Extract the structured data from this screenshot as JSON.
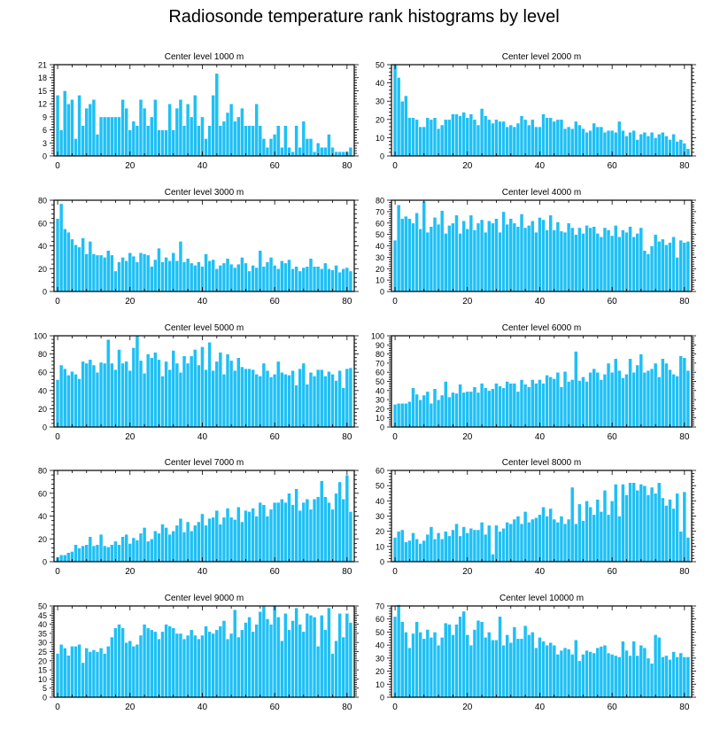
{
  "figure_title": "Radiosonde temperature rank histograms by level",
  "colors": {
    "bar": "#1EC0F5",
    "bar_edge": "#ffffff",
    "axis": "#000000"
  },
  "chart_data": [
    {
      "type": "bar",
      "title": "Center level 1000 m",
      "xlim": [
        -1,
        82
      ],
      "ylim": [
        0,
        21
      ],
      "xticks": [
        0,
        20,
        40,
        60,
        80
      ],
      "yticks": [
        0,
        3,
        6,
        9,
        12,
        15,
        18,
        21
      ],
      "values": [
        14,
        6,
        15,
        12,
        13,
        4,
        14,
        7,
        11,
        12,
        13,
        5,
        9,
        9,
        9,
        9,
        9,
        9,
        13,
        11,
        6,
        8,
        7,
        13,
        11,
        7,
        9,
        13,
        6,
        6,
        6,
        12,
        6,
        11,
        13,
        7,
        12,
        9,
        14,
        7,
        9,
        4,
        7,
        14,
        19,
        7,
        8,
        10,
        12,
        8,
        9,
        11,
        7,
        7,
        7,
        12,
        7,
        4,
        2,
        4,
        5,
        7,
        2,
        7,
        2,
        1,
        7,
        2,
        8,
        4,
        4,
        1,
        3,
        2,
        2,
        5,
        2,
        1,
        1,
        1,
        1,
        2
      ]
    },
    {
      "type": "bar",
      "title": "Center level 2000 m",
      "xlim": [
        -1,
        82
      ],
      "ylim": [
        0,
        50
      ],
      "xticks": [
        0,
        20,
        40,
        60,
        80
      ],
      "yticks": [
        0,
        10,
        20,
        30,
        40,
        50
      ],
      "values": [
        50,
        43,
        30,
        33,
        21,
        21,
        20,
        16,
        16,
        21,
        20,
        21,
        15,
        17,
        20,
        20,
        23,
        23,
        22,
        24,
        21,
        23,
        20,
        17,
        26,
        22,
        20,
        18,
        20,
        19,
        19,
        16,
        17,
        16,
        18,
        22,
        20,
        17,
        20,
        16,
        16,
        23,
        21,
        21,
        19,
        20,
        20,
        15,
        16,
        15,
        19,
        17,
        15,
        13,
        14,
        18,
        16,
        16,
        13,
        14,
        14,
        13,
        19,
        14,
        11,
        13,
        14,
        9,
        12,
        13,
        11,
        13,
        10,
        12,
        13,
        11,
        9,
        12,
        8,
        9,
        7,
        4
      ]
    },
    {
      "type": "bar",
      "title": "Center level 3000 m",
      "xlim": [
        -1,
        82
      ],
      "ylim": [
        0,
        80
      ],
      "xticks": [
        0,
        20,
        40,
        60,
        80
      ],
      "yticks": [
        0,
        20,
        40,
        60,
        80
      ],
      "values": [
        64,
        77,
        55,
        52,
        46,
        41,
        39,
        47,
        33,
        44,
        33,
        32,
        32,
        30,
        36,
        32,
        18,
        26,
        30,
        27,
        34,
        31,
        26,
        34,
        33,
        32,
        22,
        28,
        38,
        26,
        30,
        27,
        34,
        27,
        44,
        26,
        29,
        25,
        23,
        26,
        22,
        33,
        27,
        28,
        20,
        23,
        25,
        29,
        24,
        21,
        24,
        30,
        25,
        18,
        23,
        21,
        36,
        22,
        26,
        30,
        23,
        20,
        27,
        25,
        28,
        20,
        22,
        18,
        21,
        22,
        29,
        22,
        22,
        20,
        25,
        20,
        19,
        23,
        17,
        20,
        21,
        18
      ]
    },
    {
      "type": "bar",
      "title": "Center level 4000 m",
      "xlim": [
        -1,
        82
      ],
      "ylim": [
        0,
        80
      ],
      "xticks": [
        0,
        20,
        40,
        60,
        80
      ],
      "yticks": [
        0,
        10,
        20,
        30,
        40,
        50,
        60,
        70,
        80
      ],
      "values": [
        45,
        76,
        64,
        66,
        64,
        60,
        69,
        55,
        79,
        52,
        57,
        65,
        59,
        71,
        51,
        58,
        60,
        67,
        51,
        62,
        55,
        67,
        54,
        60,
        63,
        52,
        62,
        60,
        64,
        52,
        70,
        59,
        64,
        60,
        57,
        68,
        56,
        58,
        62,
        52,
        65,
        63,
        54,
        67,
        54,
        61,
        53,
        52,
        60,
        56,
        50,
        56,
        51,
        58,
        56,
        57,
        51,
        48,
        56,
        54,
        49,
        58,
        48,
        54,
        52,
        57,
        48,
        51,
        56,
        36,
        33,
        40,
        50,
        44,
        46,
        41,
        43,
        48,
        30,
        45,
        43,
        44
      ]
    },
    {
      "type": "bar",
      "title": "Center level 5000 m",
      "xlim": [
        -1,
        82
      ],
      "ylim": [
        0,
        100
      ],
      "xticks": [
        0,
        20,
        40,
        60,
        80
      ],
      "yticks": [
        0,
        20,
        40,
        60,
        80,
        100
      ],
      "values": [
        52,
        68,
        64,
        57,
        61,
        58,
        53,
        72,
        70,
        74,
        68,
        60,
        71,
        70,
        96,
        70,
        63,
        85,
        70,
        72,
        62,
        87,
        100,
        73,
        59,
        80,
        76,
        82,
        74,
        56,
        72,
        63,
        84,
        70,
        60,
        78,
        70,
        78,
        85,
        68,
        88,
        63,
        93,
        62,
        72,
        82,
        58,
        80,
        73,
        62,
        76,
        66,
        64,
        64,
        63,
        58,
        56,
        70,
        62,
        55,
        58,
        72,
        60,
        58,
        57,
        62,
        46,
        64,
        70,
        47,
        60,
        56,
        63,
        63,
        56,
        61,
        58,
        51,
        62,
        43,
        64,
        65
      ]
    },
    {
      "type": "bar",
      "title": "Center level 6000 m",
      "xlim": [
        -1,
        82
      ],
      "ylim": [
        0,
        100
      ],
      "xticks": [
        0,
        20,
        40,
        60,
        80
      ],
      "yticks": [
        0,
        10,
        20,
        30,
        40,
        50,
        60,
        70,
        80,
        90,
        100
      ],
      "values": [
        25,
        26,
        26,
        26,
        28,
        43,
        36,
        30,
        35,
        39,
        26,
        42,
        30,
        35,
        50,
        33,
        38,
        37,
        47,
        38,
        39,
        39,
        44,
        38,
        48,
        43,
        40,
        42,
        48,
        45,
        43,
        50,
        48,
        48,
        39,
        52,
        47,
        44,
        52,
        48,
        52,
        48,
        57,
        55,
        53,
        60,
        44,
        61,
        50,
        52,
        83,
        51,
        55,
        50,
        60,
        64,
        60,
        52,
        58,
        70,
        60,
        75,
        62,
        54,
        58,
        75,
        60,
        68,
        80,
        60,
        62,
        64,
        70,
        55,
        75,
        70,
        63,
        58,
        56,
        78,
        76,
        62
      ]
    },
    {
      "type": "bar",
      "title": "Center level 7000 m",
      "xlim": [
        -1,
        82
      ],
      "ylim": [
        0,
        80
      ],
      "xticks": [
        0,
        20,
        40,
        60,
        80
      ],
      "yticks": [
        0,
        20,
        40,
        60,
        80
      ],
      "values": [
        4,
        6,
        6,
        8,
        9,
        15,
        12,
        14,
        15,
        22,
        14,
        15,
        24,
        14,
        13,
        15,
        18,
        15,
        22,
        24,
        16,
        21,
        19,
        25,
        30,
        18,
        20,
        27,
        25,
        33,
        30,
        24,
        27,
        32,
        38,
        26,
        35,
        27,
        32,
        35,
        42,
        32,
        38,
        39,
        45,
        33,
        39,
        47,
        39,
        37,
        48,
        35,
        45,
        44,
        47,
        40,
        52,
        50,
        40,
        46,
        52,
        52,
        55,
        52,
        60,
        50,
        64,
        45,
        52,
        55,
        46,
        55,
        57,
        71,
        57,
        52,
        46,
        60,
        70,
        55,
        76,
        44
      ]
    },
    {
      "type": "bar",
      "title": "Center level 8000 m",
      "xlim": [
        -1,
        82
      ],
      "ylim": [
        0,
        60
      ],
      "xticks": [
        0,
        20,
        40,
        60,
        80
      ],
      "yticks": [
        0,
        10,
        20,
        30,
        40,
        50,
        60
      ],
      "values": [
        16,
        20,
        21,
        13,
        14,
        19,
        15,
        12,
        14,
        18,
        23,
        15,
        19,
        15,
        20,
        17,
        21,
        25,
        17,
        23,
        19,
        22,
        21,
        21,
        26,
        18,
        24,
        5,
        24,
        20,
        22,
        26,
        25,
        28,
        30,
        25,
        33,
        26,
        28,
        29,
        31,
        36,
        30,
        35,
        28,
        26,
        30,
        25,
        28,
        49,
        25,
        38,
        27,
        40,
        36,
        31,
        41,
        33,
        47,
        31,
        40,
        51,
        30,
        51,
        44,
        52,
        52,
        47,
        51,
        50,
        44,
        49,
        45,
        52,
        42,
        37,
        41,
        35,
        45,
        20,
        46,
        16
      ]
    },
    {
      "type": "bar",
      "title": "Center level 9000 m",
      "xlim": [
        -1,
        82
      ],
      "ylim": [
        0,
        50
      ],
      "xticks": [
        0,
        20,
        40,
        60,
        80
      ],
      "yticks": [
        0,
        5,
        10,
        15,
        20,
        25,
        30,
        35,
        40,
        45,
        50
      ],
      "values": [
        24,
        29,
        27,
        23,
        28,
        28,
        29,
        19,
        27,
        25,
        26,
        25,
        27,
        24,
        28,
        33,
        38,
        40,
        38,
        30,
        31,
        28,
        29,
        34,
        40,
        38,
        37,
        36,
        32,
        36,
        40,
        39,
        38,
        35,
        35,
        32,
        34,
        37,
        34,
        32,
        34,
        39,
        36,
        35,
        37,
        39,
        42,
        32,
        35,
        48,
        33,
        37,
        41,
        44,
        36,
        40,
        47,
        50,
        43,
        40,
        50,
        44,
        31,
        46,
        37,
        42,
        49,
        40,
        36,
        46,
        45,
        44,
        28,
        45,
        37,
        49,
        24,
        31,
        46,
        33,
        46,
        41
      ]
    },
    {
      "type": "bar",
      "title": "Center level 10000 m",
      "xlim": [
        -1,
        82
      ],
      "ylim": [
        0,
        70
      ],
      "xticks": [
        0,
        20,
        40,
        60,
        80
      ],
      "yticks": [
        0,
        10,
        20,
        30,
        40,
        50,
        60,
        70
      ],
      "values": [
        62,
        71,
        58,
        50,
        38,
        49,
        58,
        50,
        45,
        52,
        46,
        50,
        40,
        46,
        57,
        56,
        48,
        56,
        62,
        66,
        48,
        40,
        52,
        59,
        58,
        46,
        50,
        44,
        44,
        62,
        40,
        48,
        42,
        54,
        45,
        45,
        55,
        48,
        50,
        38,
        46,
        43,
        40,
        42,
        40,
        33,
        36,
        38,
        37,
        33,
        44,
        28,
        33,
        36,
        35,
        34,
        38,
        39,
        40,
        34,
        33,
        32,
        31,
        43,
        36,
        32,
        43,
        32,
        40,
        38,
        30,
        26,
        48,
        46,
        31,
        32,
        29,
        35,
        31,
        34,
        31,
        31
      ]
    }
  ]
}
